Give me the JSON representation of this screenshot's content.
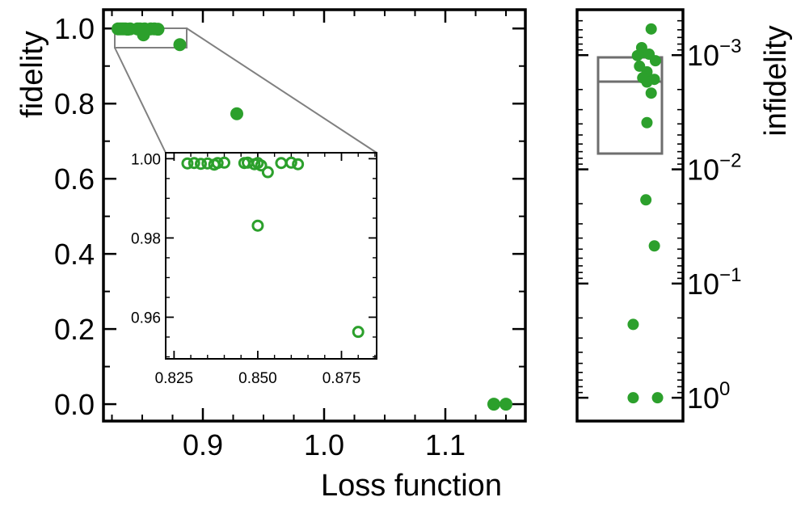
{
  "colors": {
    "points": "#2ca02c",
    "axes": "#000000",
    "zoom_lines": "#808080",
    "box": "#6e6e6e"
  },
  "chart_data": [
    {
      "id": "main",
      "type": "scatter",
      "title": "",
      "xlabel": "Loss function",
      "ylabel": "fidelity",
      "xlim": [
        0.818,
        1.166
      ],
      "ylim": [
        -0.045,
        1.05
      ],
      "xticks": [
        0.9,
        1.0,
        1.1
      ],
      "xtick_labels": [
        "0.9",
        "1.0",
        "1.1"
      ],
      "yticks": [
        0.0,
        0.2,
        0.4,
        0.6,
        0.8,
        1.0
      ],
      "ytick_labels": [
        "0.0",
        "0.2",
        "0.4",
        "0.6",
        "0.8",
        "1.0"
      ],
      "marker": "filled-circle",
      "points": [
        {
          "x": 0.83,
          "y": 0.999
        },
        {
          "x": 0.832,
          "y": 0.999
        },
        {
          "x": 0.834,
          "y": 0.999
        },
        {
          "x": 0.836,
          "y": 0.999
        },
        {
          "x": 0.838,
          "y": 0.998
        },
        {
          "x": 0.84,
          "y": 0.999
        },
        {
          "x": 0.846,
          "y": 0.999
        },
        {
          "x": 0.848,
          "y": 0.999
        },
        {
          "x": 0.85,
          "y": 0.998
        },
        {
          "x": 0.851,
          "y": 0.983
        },
        {
          "x": 0.852,
          "y": 0.999
        },
        {
          "x": 0.854,
          "y": 0.997
        },
        {
          "x": 0.857,
          "y": 0.999
        },
        {
          "x": 0.86,
          "y": 0.999
        },
        {
          "x": 0.863,
          "y": 0.998
        },
        {
          "x": 0.881,
          "y": 0.957
        },
        {
          "x": 0.928,
          "y": 0.773
        },
        {
          "x": 1.14,
          "y": 0.0
        },
        {
          "x": 1.15,
          "y": 0.0
        }
      ]
    },
    {
      "id": "inset",
      "type": "scatter",
      "xlim": [
        0.8225,
        0.8855
      ],
      "ylim": [
        0.9495,
        1.0015
      ],
      "xticks": [
        0.825,
        0.85,
        0.875
      ],
      "xtick_labels": [
        "0.825",
        "0.850",
        "0.875"
      ],
      "yticks": [
        0.96,
        0.98,
        1.0
      ],
      "ytick_labels": [
        "0.96",
        "0.98",
        "1.00"
      ],
      "marker": "open-circle",
      "zoom_region": {
        "x": [
          0.826,
          0.884
        ],
        "y": [
          0.948,
          1.003
        ]
      },
      "points": [
        {
          "x": 0.829,
          "y": 0.9988
        },
        {
          "x": 0.831,
          "y": 0.9989
        },
        {
          "x": 0.833,
          "y": 0.9987
        },
        {
          "x": 0.835,
          "y": 0.9988
        },
        {
          "x": 0.837,
          "y": 0.9985
        },
        {
          "x": 0.838,
          "y": 0.9989
        },
        {
          "x": 0.84,
          "y": 0.999
        },
        {
          "x": 0.846,
          "y": 0.9989
        },
        {
          "x": 0.847,
          "y": 0.999
        },
        {
          "x": 0.849,
          "y": 0.9986
        },
        {
          "x": 0.85,
          "y": 0.9989
        },
        {
          "x": 0.851,
          "y": 0.9983
        },
        {
          "x": 0.85,
          "y": 0.9831
        },
        {
          "x": 0.853,
          "y": 0.9966
        },
        {
          "x": 0.857,
          "y": 0.9989
        },
        {
          "x": 0.86,
          "y": 0.999
        },
        {
          "x": 0.862,
          "y": 0.9986
        },
        {
          "x": 0.88,
          "y": 0.9563
        }
      ]
    },
    {
      "id": "right",
      "type": "scatter",
      "ylabel": "infidelity",
      "yscale": "log",
      "y_inverted": true,
      "ylim": [
        0.0004,
        1.6
      ],
      "yticks": [
        0.001,
        0.01,
        0.1,
        1
      ],
      "ytick_labels": [
        {
          "base": "10",
          "exp": "−3"
        },
        {
          "base": "10",
          "exp": "−2"
        },
        {
          "base": "10",
          "exp": "−1"
        },
        {
          "base": "10",
          "exp": "0"
        }
      ],
      "marker": "filled-circle",
      "box": {
        "q1": 0.00085,
        "median": 0.0017,
        "q3": 0.0084
      },
      "points": [
        {
          "jitter": 0.7,
          "y": 0.00059
        },
        {
          "jitter": 0.61,
          "y": 0.00086
        },
        {
          "jitter": 0.62,
          "y": 0.00095
        },
        {
          "jitter": 0.68,
          "y": 0.00098
        },
        {
          "jitter": 0.57,
          "y": 0.00101
        },
        {
          "jitter": 0.74,
          "y": 0.00112
        },
        {
          "jitter": 0.59,
          "y": 0.00125
        },
        {
          "jitter": 0.66,
          "y": 0.0014
        },
        {
          "jitter": 0.62,
          "y": 0.00158
        },
        {
          "jitter": 0.73,
          "y": 0.00163
        },
        {
          "jitter": 0.66,
          "y": 0.00172
        },
        {
          "jitter": 0.7,
          "y": 0.00215
        },
        {
          "jitter": 0.66,
          "y": 0.0039
        },
        {
          "jitter": 0.65,
          "y": 0.0185
        },
        {
          "jitter": 0.73,
          "y": 0.0468
        },
        {
          "jitter": 0.53,
          "y": 0.228
        },
        {
          "jitter": 0.53,
          "y": 1.0
        },
        {
          "jitter": 0.76,
          "y": 1.0
        }
      ]
    }
  ]
}
